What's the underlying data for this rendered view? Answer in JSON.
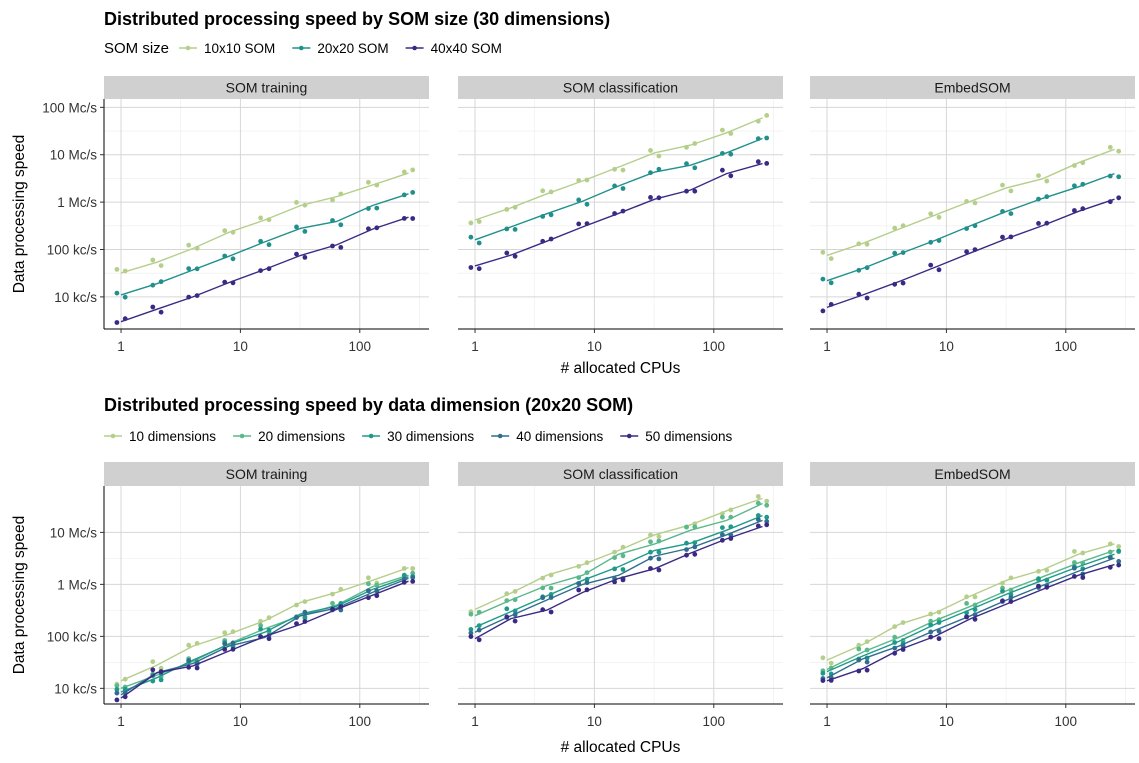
{
  "chart_data": [
    {
      "type": "line",
      "title": "Distributed processing speed by SOM size (30 dimensions)",
      "legend_title": "SOM size",
      "legend_position": "top-left",
      "xlabel": "# allocated CPUs",
      "ylabel": "Data processing speed",
      "x_scale": "log",
      "y_scale": "log",
      "x_ticks": [
        {
          "value": 1,
          "label": "1"
        },
        {
          "value": 10,
          "label": "10"
        },
        {
          "value": 100,
          "label": "100"
        }
      ],
      "y_ticks": [
        {
          "value": 10000,
          "label": "10 kc/s"
        },
        {
          "value": 100000,
          "label": "100 kc/s"
        },
        {
          "value": 1000000,
          "label": "1 Mc/s"
        },
        {
          "value": 10000000,
          "label": "10 Mc/s"
        },
        {
          "value": 100000000,
          "label": "100 Mc/s"
        }
      ],
      "xlim": [
        0.72,
        380
      ],
      "ylim": [
        2100,
        150000000
      ],
      "grid": true,
      "x": [
        1,
        2,
        4,
        8,
        16,
        32,
        64,
        128,
        256
      ],
      "facets": [
        {
          "name": "SOM training",
          "series": [
            {
              "name": "10x10 SOM",
              "color": "#b5cf8b",
              "values": [
                32000,
                54000,
                105000,
                230000,
                420000,
                850000,
                1300000,
                2300000,
                4100000
              ]
            },
            {
              "name": "20x20 SOM",
              "color": "#21908c",
              "values": [
                11000,
                19000,
                37000,
                72000,
                145000,
                280000,
                390000,
                850000,
                1500000
              ]
            },
            {
              "name": "40x40 SOM",
              "color": "#3b2a85",
              "values": [
                3000,
                5500,
                10000,
                20000,
                38000,
                75000,
                125000,
                270000,
                480000
              ]
            }
          ]
        },
        {
          "name": "SOM classification",
          "series": [
            {
              "name": "10x10 SOM",
              "color": "#b5cf8b",
              "values": [
                420000,
                760000,
                1500000,
                2800000,
                5500000,
                11000000,
                16000000,
                29000000,
                60000000
              ]
            },
            {
              "name": "20x20 SOM",
              "color": "#21908c",
              "values": [
                160000,
                300000,
                570000,
                1050000,
                2200000,
                4300000,
                6000000,
                11000000,
                22000000
              ]
            },
            {
              "name": "40x40 SOM",
              "color": "#3b2a85",
              "values": [
                45000,
                76000,
                150000,
                300000,
                580000,
                1150000,
                1800000,
                4000000,
                6500000
              ]
            }
          ]
        },
        {
          "name": "EmbedSOM",
          "series": [
            {
              "name": "10x10 SOM",
              "color": "#b5cf8b",
              "values": [
                75000,
                135000,
                270000,
                530000,
                1050000,
                2000000,
                3100000,
                6800000,
                13000000
              ]
            },
            {
              "name": "20x20 SOM",
              "color": "#21908c",
              "values": [
                22000,
                40000,
                80000,
                155000,
                320000,
                640000,
                1200000,
                2100000,
                4000000
              ]
            },
            {
              "name": "40x40 SOM",
              "color": "#3b2a85",
              "values": [
                6000,
                11000,
                21000,
                42000,
                85000,
                170000,
                320000,
                640000,
                1150000
              ]
            }
          ]
        }
      ]
    },
    {
      "type": "line",
      "title": "Distributed processing speed by data dimension (20x20 SOM)",
      "legend_position": "top-left",
      "xlabel": "# allocated CPUs",
      "ylabel": "Data processing speed",
      "x_scale": "log",
      "y_scale": "log",
      "x_ticks": [
        {
          "value": 1,
          "label": "1"
        },
        {
          "value": 10,
          "label": "10"
        },
        {
          "value": 100,
          "label": "100"
        }
      ],
      "y_ticks": [
        {
          "value": 10000,
          "label": "10 kc/s"
        },
        {
          "value": 100000,
          "label": "100 kc/s"
        },
        {
          "value": 1000000,
          "label": "1 Mc/s"
        },
        {
          "value": 10000000,
          "label": "10 Mc/s"
        }
      ],
      "xlim": [
        0.72,
        380
      ],
      "ylim": [
        5000,
        78000000
      ],
      "grid": true,
      "x": [
        1,
        2,
        4,
        8,
        16,
        32,
        64,
        128,
        256
      ],
      "facets": [
        {
          "name": "SOM training",
          "series": [
            {
              "name": "10 dimensions",
              "color": "#b5cf8b",
              "values": [
                14000,
                28000,
                65000,
                110000,
                200000,
                450000,
                700000,
                1200000,
                2100000
              ]
            },
            {
              "name": "20 dimensions",
              "color": "#5ab88a",
              "values": [
                10000,
                18000,
                33000,
                72000,
                140000,
                250000,
                400000,
                900000,
                1500000
              ]
            },
            {
              "name": "30 dimensions",
              "color": "#1f9a8a",
              "values": [
                8500,
                16000,
                35000,
                70000,
                120000,
                270000,
                380000,
                800000,
                1400000
              ]
            },
            {
              "name": "40 dimensions",
              "color": "#2f6e8e",
              "values": [
                7500,
                20000,
                30000,
                65000,
                95000,
                250000,
                350000,
                700000,
                1300000
              ]
            },
            {
              "name": "50 dimensions",
              "color": "#3b2a85",
              "values": [
                6500,
                20000,
                27000,
                52000,
                100000,
                170000,
                330000,
                620000,
                1150000
              ]
            }
          ]
        },
        {
          "name": "SOM classification",
          "series": [
            {
              "name": "10 dimensions",
              "color": "#b5cf8b",
              "values": [
                330000,
                680000,
                1500000,
                2400000,
                4500000,
                9000000,
                14000000,
                26000000,
                45000000
              ]
            },
            {
              "name": "20 dimensions",
              "color": "#5ab88a",
              "values": [
                250000,
                500000,
                950000,
                1500000,
                3800000,
                6000000,
                11000000,
                17000000,
                36000000
              ]
            },
            {
              "name": "30 dimensions",
              "color": "#1f9a8a",
              "values": [
                150000,
                300000,
                600000,
                1200000,
                2200000,
                4500000,
                6200000,
                11000000,
                21000000
              ]
            },
            {
              "name": "40 dimensions",
              "color": "#2f6e8e",
              "values": [
                120000,
                250000,
                500000,
                1000000,
                1500000,
                3500000,
                5000000,
                9000000,
                17000000
              ]
            },
            {
              "name": "50 dimensions",
              "color": "#3b2a85",
              "values": [
                90000,
                220000,
                320000,
                700000,
                1300000,
                2000000,
                4000000,
                7500000,
                13000000
              ]
            }
          ]
        },
        {
          "name": "EmbedSOM",
          "series": [
            {
              "name": "10 dimensions",
              "color": "#b5cf8b",
              "values": [
                35000,
                70000,
                170000,
                280000,
                600000,
                1200000,
                1900000,
                3800000,
                6000000
              ]
            },
            {
              "name": "20 dimensions",
              "color": "#5ab88a",
              "values": [
                23000,
                50000,
                95000,
                200000,
                380000,
                760000,
                1400000,
                2600000,
                4500000
              ]
            },
            {
              "name": "30 dimensions",
              "color": "#1f9a8a",
              "values": [
                21000,
                42000,
                80000,
                170000,
                330000,
                650000,
                1200000,
                2200000,
                3800000
              ]
            },
            {
              "name": "40 dimensions",
              "color": "#2f6e8e",
              "values": [
                16000,
                37000,
                65000,
                130000,
                250000,
                500000,
                950000,
                1800000,
                3200000
              ]
            },
            {
              "name": "50 dimensions",
              "color": "#3b2a85",
              "values": [
                14000,
                24000,
                55000,
                100000,
                220000,
                420000,
                800000,
                1500000,
                2400000
              ]
            }
          ]
        }
      ]
    }
  ]
}
